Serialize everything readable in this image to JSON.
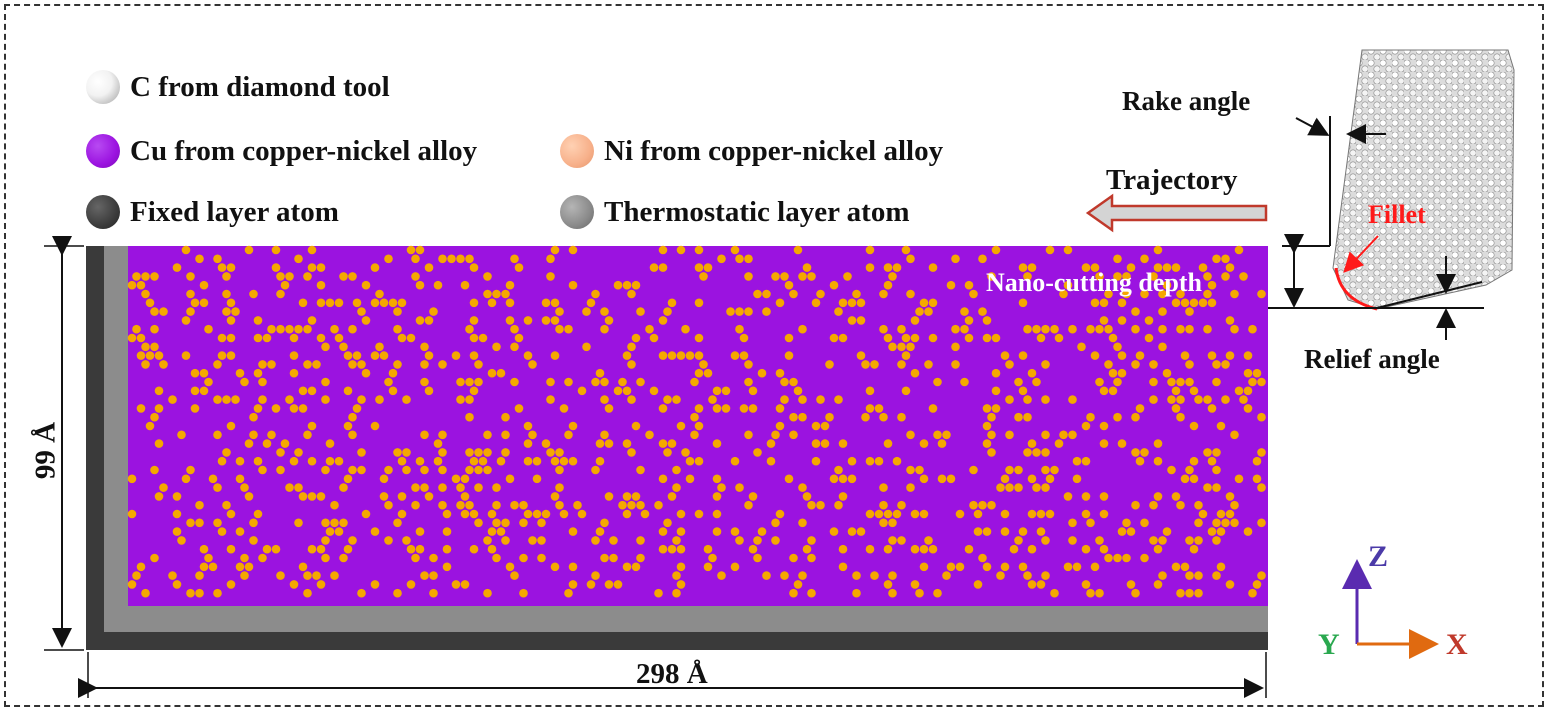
{
  "legend": [
    {
      "label": "C from diamond tool",
      "icon": "white-sphere-icon",
      "color": "#e8e8e8"
    },
    {
      "label": "Cu from copper-nickel alloy",
      "icon": "purple-sphere-icon",
      "color": "#9b13e0"
    },
    {
      "label": "Ni from copper-nickel alloy",
      "icon": "peach-sphere-icon",
      "color": "#f7b08a"
    },
    {
      "label": "Fixed layer atom",
      "icon": "dark-gray-sphere-icon",
      "color": "#3c3c3c"
    },
    {
      "label": "Thermostatic  layer atom",
      "icon": "gray-sphere-icon",
      "color": "#8a8a8a"
    }
  ],
  "labels": {
    "rake_angle": "Rake angle",
    "trajectory": "Trajectory",
    "fillet": "Fillet",
    "cutting_depth": "Nano-cutting depth",
    "relief_angle": "Relief angle",
    "height": "99 Å",
    "width": "298 Å"
  },
  "axes": {
    "z": "Z",
    "y": "Y",
    "x": "X"
  },
  "colors": {
    "cu": "#9b13e0",
    "ni": "#f5a800",
    "fixed": "#3a3a3a",
    "thermo": "#8c8c8c",
    "fillet": "#ff1a1a",
    "arrow_outline": "#c0392b",
    "arrow_fill": "#d4d4d4",
    "axis_z": "#5a2bb0",
    "axis_x": "#e06a10",
    "label_x": "#c0392b",
    "label_y": "#2aa84f",
    "label_z": "#4b3aa8"
  }
}
